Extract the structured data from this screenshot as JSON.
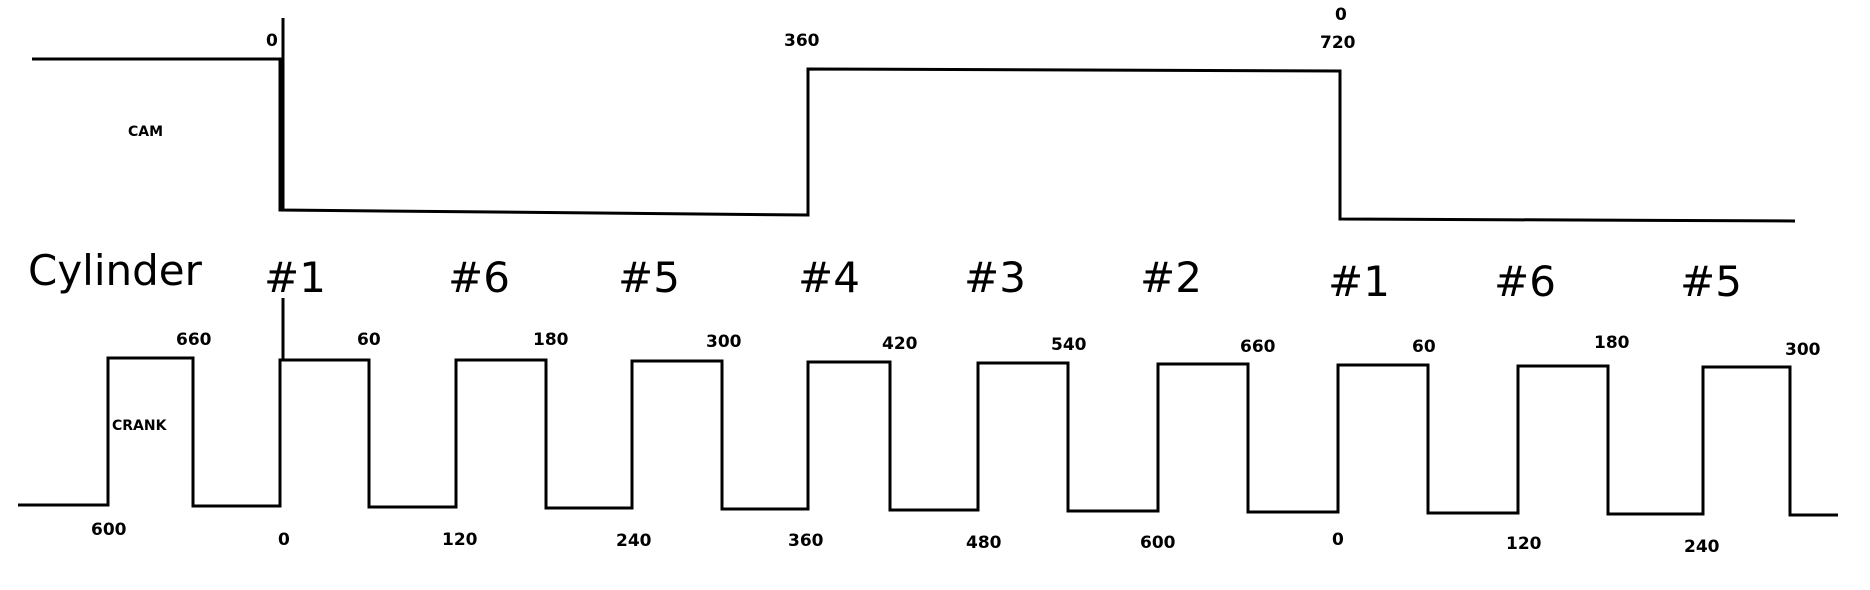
{
  "labels": {
    "cam": "CAM",
    "crank": "CRANK",
    "cylinder_word": "Cylinder"
  },
  "cam_top_labels": {
    "zero_start": "0",
    "mid": "360",
    "end_zero": "0",
    "end_720": "720"
  },
  "cylinders": [
    "#1",
    "#6",
    "#5",
    "#4",
    "#3",
    "#2",
    "#1",
    "#6",
    "#5"
  ],
  "crank_top_labels": [
    "660",
    "60",
    "180",
    "300",
    "420",
    "540",
    "660",
    "60",
    "180",
    "300"
  ],
  "crank_bottom_labels": [
    "600",
    "0",
    "120",
    "240",
    "360",
    "480",
    "600",
    "0",
    "120",
    "240"
  ]
}
